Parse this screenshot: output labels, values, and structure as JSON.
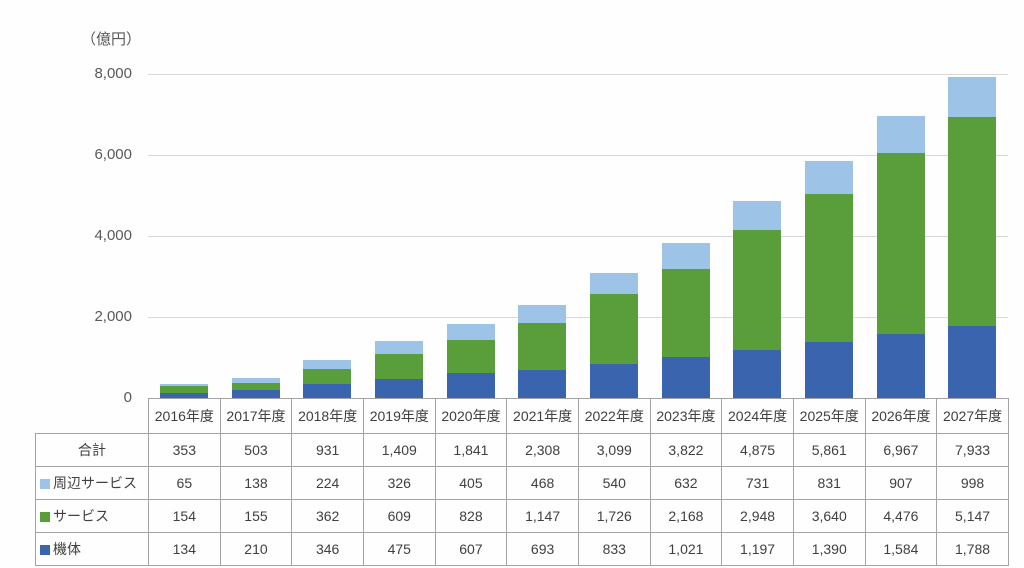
{
  "chart_data": {
    "type": "bar",
    "stacked": true,
    "title": "",
    "unit_label": "（億円）",
    "ylabel": "億円",
    "ylim": [
      0,
      8000
    ],
    "ytick_interval": 2000,
    "grid": true,
    "legend_position": "table-left-column",
    "categories": [
      "2016年度",
      "2017年度",
      "2018年度",
      "2019年度",
      "2020年度",
      "2021年度",
      "2022年度",
      "2023年度",
      "2024年度",
      "2025年度",
      "2026年度",
      "2027年度"
    ],
    "series": [
      {
        "name": "機体",
        "color": "#3A64AD",
        "values": [
          134,
          210,
          346,
          475,
          607,
          693,
          833,
          1021,
          1197,
          1390,
          1584,
          1788
        ]
      },
      {
        "name": "サービス",
        "color": "#599E3A",
        "values": [
          154,
          155,
          362,
          609,
          828,
          1147,
          1726,
          2168,
          2948,
          3640,
          4476,
          5147
        ]
      },
      {
        "name": "周辺サービス",
        "color": "#9DC3E6",
        "values": [
          65,
          138,
          224,
          326,
          405,
          468,
          540,
          632,
          731,
          831,
          907,
          998
        ]
      }
    ],
    "totals": {
      "label": "合計",
      "values": [
        353,
        503,
        931,
        1409,
        1841,
        2308,
        3099,
        3822,
        4875,
        5861,
        6967,
        7933
      ]
    },
    "table_row_order": [
      "合計",
      "周辺サービス",
      "サービス",
      "機体"
    ],
    "colors": {
      "gridline": "#d9d9d9",
      "axis_text": "#595959",
      "table_border": "#a3a3a3",
      "table_text": "#404040"
    }
  }
}
